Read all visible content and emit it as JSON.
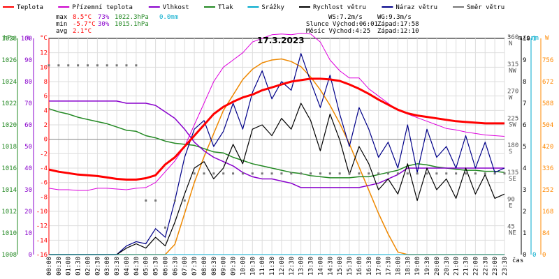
{
  "chart_data": {
    "type": "line",
    "title": "17.3.2023",
    "x_tick_labels": [
      "00:00",
      "00:30",
      "01:00",
      "01:30",
      "02:00",
      "02:30",
      "03:00",
      "03:30",
      "04:00",
      "04:30",
      "05:00",
      "05:30",
      "06:00",
      "06:30",
      "07:00",
      "07:30",
      "08:00",
      "08:30",
      "09:00",
      "09:30",
      "10:00",
      "10:30",
      "11:00",
      "11:30",
      "12:00",
      "12:30",
      "13:00",
      "13:30",
      "14:00",
      "14:30",
      "15:00",
      "15:30",
      "16:00",
      "16:30",
      "17:00",
      "17:30",
      "18:00",
      "18:30",
      "19:00",
      "19:30",
      "20:00",
      "20:30",
      "21:00",
      "21:30",
      "22:00",
      "22:30",
      "23:00",
      "23:30"
    ],
    "x_axis_label": "čas",
    "legend": [
      {
        "name": "Teplota",
        "color": "#ff0000"
      },
      {
        "name": "Přízemní teplota",
        "color": "#cc00cc"
      },
      {
        "name": "Vlhkost",
        "color": "#8800cc"
      },
      {
        "name": "Tlak",
        "color": "#228822"
      },
      {
        "name": "Srážky",
        "color": "#00aacc"
      },
      {
        "name": "Rychlost větru",
        "color": "#000000"
      },
      {
        "name": "Náraz větru",
        "color": "#000088"
      },
      {
        "name": "Směr větru",
        "color": "#777777"
      }
    ],
    "stats": {
      "max_label": "max",
      "max_temp": "8.5°C",
      "max_hum": "73%",
      "max_press": "1022.3hPa",
      "max_rain": "0.0mm",
      "min_label": "min",
      "min_temp": "-5.7°C",
      "min_hum": "30%",
      "min_press": "1015.1hPa",
      "avg_label": "avg",
      "avg_temp": "2.1°C"
    },
    "wind_info": {
      "ws": "WS:7.2m/s",
      "wg": "WG:9.3m/s"
    },
    "sun": {
      "rise": "Slunce Východ:06:01",
      "set": "Západ:17:58"
    },
    "moon": {
      "rise": "Měsíc  Východ:4:25",
      "set": "Západ:12:10"
    },
    "axes": {
      "pressure": {
        "unit": "hPa",
        "range": [
          1008,
          1028
        ],
        "ticks": [
          "1028",
          "1026",
          "1024",
          "1022",
          "1020",
          "1018",
          "1016",
          "1014",
          "1012",
          "1010",
          "1008"
        ]
      },
      "humidity": {
        "unit": "%",
        "range": [
          0,
          100
        ],
        "ticks": [
          "100",
          "90",
          "80",
          "70",
          "60",
          "50",
          "40",
          "30",
          "20",
          "10",
          "0"
        ]
      },
      "temperature": {
        "unit": "°C",
        "range": [
          -16,
          14
        ],
        "ticks": [
          "12",
          "10",
          "8",
          "6",
          "4",
          "2",
          "0",
          "-2",
          "-4",
          "-6",
          "-8",
          "-10",
          "-12",
          "-14",
          "-16"
        ]
      },
      "direction": {
        "unit": "°",
        "ticks": [
          {
            "v": "360",
            "c": "N"
          },
          {
            "v": "315",
            "c": "NW"
          },
          {
            "v": "270",
            "c": "W"
          },
          {
            "v": "225",
            "c": "SW"
          },
          {
            "v": "180",
            "c": "S"
          },
          {
            "v": "135",
            "c": "SE"
          },
          {
            "v": "90",
            "c": "E"
          },
          {
            "v": "45",
            "c": "NE"
          }
        ]
      },
      "wind": {
        "unit": "m/s",
        "range": [
          0,
          10
        ],
        "ticks": [
          "10",
          "9",
          "8",
          "7",
          "6",
          "5",
          "4",
          "3",
          "2",
          "1",
          "0"
        ]
      },
      "rain": {
        "unit": "mm",
        "range": [
          0,
          1
        ],
        "ticks": [
          "1",
          "0"
        ]
      },
      "solar": {
        "unit": "W",
        "range": [
          0,
          840
        ],
        "ticks": [
          "756",
          "672",
          "588",
          "504",
          "420",
          "336",
          "252",
          "168",
          "84",
          "0"
        ]
      }
    },
    "series": {
      "temperature": [
        -4.2,
        -4.5,
        -4.7,
        -4.9,
        -5.0,
        -5.1,
        -5.3,
        -5.5,
        -5.6,
        -5.6,
        -5.4,
        -5.0,
        -3.5,
        -2.5,
        -1.0,
        0.5,
        2.0,
        3.5,
        4.5,
        5.2,
        5.8,
        6.2,
        6.8,
        7.2,
        7.6,
        8.0,
        8.2,
        8.4,
        8.4,
        8.3,
        8.1,
        7.6,
        7.0,
        6.3,
        5.5,
        4.8,
        4.1,
        3.6,
        3.3,
        3.1,
        2.9,
        2.7,
        2.5,
        2.4,
        2.3,
        2.2,
        2.2,
        2.2
      ],
      "ground_temperature": [
        -6.8,
        -7.0,
        -7.0,
        -7.1,
        -7.1,
        -6.8,
        -6.8,
        -6.9,
        -7.0,
        -6.8,
        -6.7,
        -6.0,
        -4.5,
        -3.0,
        -1.0,
        2.0,
        5.0,
        8.0,
        10.0,
        11.0,
        12.0,
        13.5,
        14.0,
        14.5,
        14.6,
        14.5,
        14.7,
        14.6,
        13.5,
        11.0,
        9.5,
        8.5,
        8.5,
        7.0,
        6.0,
        5.0,
        4.0,
        3.5,
        3.0,
        2.5,
        2.0,
        1.5,
        1.3,
        1.0,
        0.8,
        0.6,
        0.5,
        0.4
      ],
      "humidity": [
        71,
        71,
        71,
        71,
        71,
        71,
        71,
        71,
        70,
        70,
        70,
        69,
        66,
        63,
        58,
        52,
        48,
        45,
        43,
        41,
        38,
        36,
        35,
        35,
        34,
        33,
        31,
        31,
        31,
        31,
        31,
        31,
        31,
        32,
        33,
        35,
        37,
        40,
        40,
        40,
        40,
        40,
        40,
        40,
        40,
        40,
        40,
        40
      ],
      "pressure": [
        1021.5,
        1021.2,
        1021.0,
        1020.7,
        1020.5,
        1020.3,
        1020.1,
        1019.8,
        1019.5,
        1019.4,
        1019.0,
        1018.8,
        1018.5,
        1018.3,
        1018.2,
        1018.1,
        1017.8,
        1017.5,
        1017.4,
        1017.0,
        1016.7,
        1016.4,
        1016.2,
        1016.0,
        1015.8,
        1015.6,
        1015.5,
        1015.3,
        1015.2,
        1015.1,
        1015.1,
        1015.1,
        1015.2,
        1015.2,
        1015.4,
        1015.6,
        1015.8,
        1016.2,
        1016.4,
        1016.3,
        1016.1,
        1016.0,
        1015.9,
        1015.8,
        1015.8,
        1015.7,
        1015.7,
        1015.6
      ],
      "wind_speed": [
        0,
        0,
        0,
        0,
        0,
        0,
        0,
        0,
        0.3,
        0.5,
        0.3,
        0.8,
        0.4,
        1.5,
        2.8,
        4.0,
        4.3,
        3.5,
        4.0,
        5.1,
        4.2,
        5.8,
        6.0,
        5.5,
        6.3,
        5.8,
        7.0,
        6.2,
        4.8,
        6.5,
        5.3,
        3.7,
        5.0,
        4.2,
        3.0,
        3.5,
        2.8,
        4.2,
        2.5,
        4.0,
        3.0,
        3.5,
        2.6,
        4.0,
        2.8,
        3.7,
        2.6,
        2.8
      ],
      "wind_gust": [
        0,
        0,
        0,
        0,
        0,
        0,
        0,
        0,
        0.4,
        0.6,
        0.5,
        1.2,
        0.8,
        2.5,
        4.5,
        5.8,
        6.2,
        5.0,
        5.7,
        7.0,
        5.8,
        7.5,
        8.5,
        7.2,
        8.0,
        7.6,
        9.3,
        8.0,
        6.8,
        8.3,
        6.5,
        5.0,
        6.8,
        5.8,
        4.5,
        5.2,
        4.0,
        6.0,
        3.8,
        5.8,
        4.5,
        5.0,
        4.0,
        5.5,
        4.0,
        5.2,
        3.8,
        4.0
      ],
      "wind_direction": [
        315,
        315,
        315,
        315,
        315,
        315,
        315,
        315,
        315,
        315,
        90,
        90,
        45,
        90,
        90,
        135,
        135,
        135,
        135,
        135,
        135,
        135,
        135,
        135,
        135,
        135,
        135,
        135,
        135,
        135,
        135,
        135,
        135,
        135,
        135,
        135,
        135,
        135,
        135,
        135,
        135,
        135,
        135,
        135,
        135,
        135,
        135,
        135
      ],
      "solar": [
        0,
        0,
        0,
        0,
        0,
        0,
        0,
        0,
        0,
        0,
        0,
        0,
        0,
        40,
        160,
        280,
        380,
        470,
        560,
        620,
        680,
        720,
        745,
        756,
        760,
        750,
        730,
        690,
        640,
        580,
        510,
        430,
        340,
        250,
        160,
        80,
        10,
        0,
        0,
        0,
        0,
        0,
        0,
        0,
        0,
        0,
        0,
        0
      ],
      "rain": [
        0,
        0,
        0,
        0,
        0,
        0,
        0,
        0,
        0,
        0,
        0,
        0,
        0,
        0,
        0,
        0,
        0,
        0,
        0,
        0,
        0,
        0,
        0,
        0,
        0,
        0,
        0,
        0,
        0,
        0,
        0,
        0,
        0,
        0,
        0,
        0,
        0,
        0,
        0,
        0,
        0,
        0,
        0,
        0,
        0,
        0,
        0,
        0
      ]
    },
    "grid": true
  }
}
